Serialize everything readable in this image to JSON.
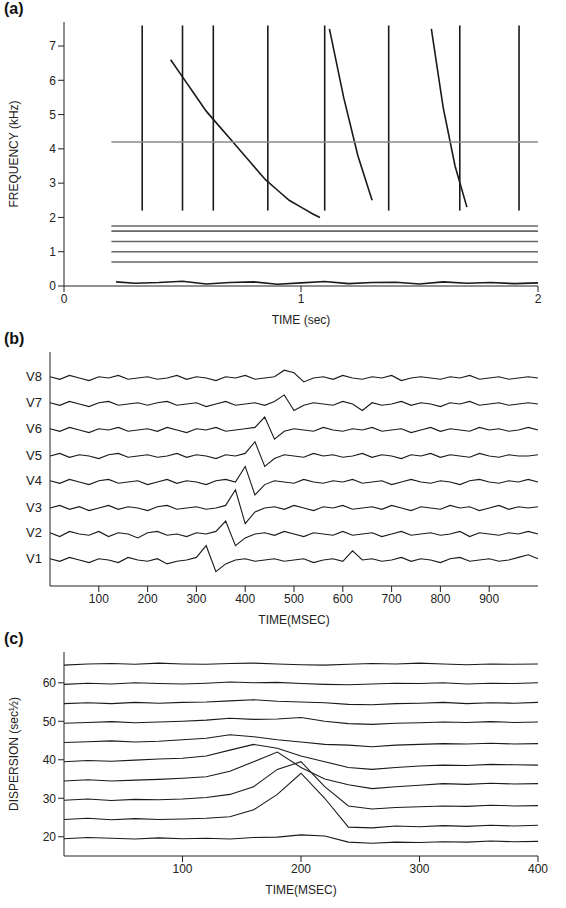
{
  "chart_data": [
    {
      "type": "line",
      "title": "(a)",
      "x_label": "TIME (sec)",
      "y_label": "FREQUENCY (kHz)",
      "color": "#1a1a1a",
      "xlim": [
        0,
        2
      ],
      "xticks": [
        0,
        1,
        2
      ],
      "ylim": [
        0,
        7.7
      ],
      "yticks": [
        0,
        1,
        2,
        3,
        4,
        5,
        6,
        7
      ],
      "series": [
        {
          "x": [
            0.45,
            0.5,
            0.55,
            0.6,
            0.65,
            0.7,
            0.75,
            0.8,
            0.85,
            0.9,
            0.95,
            1.0,
            1.05,
            1.08
          ],
          "values": [
            6.6,
            6.1,
            5.6,
            5.1,
            4.7,
            4.3,
            3.9,
            3.5,
            3.1,
            2.8,
            2.5,
            2.3,
            2.1,
            2.0
          ]
        },
        {
          "x": [
            1.12,
            1.18,
            1.24,
            1.3
          ],
          "values": [
            7.5,
            5.5,
            3.8,
            2.5
          ]
        },
        {
          "x": [
            1.55,
            1.6,
            1.65,
            1.7
          ],
          "values": [
            7.5,
            5.2,
            3.5,
            2.3
          ]
        },
        {
          "x": [
            0.33,
            0.33
          ],
          "values": [
            2.2,
            7.6
          ]
        },
        {
          "x": [
            0.5,
            0.5
          ],
          "values": [
            2.2,
            7.6
          ]
        },
        {
          "x": [
            0.63,
            0.63
          ],
          "values": [
            2.2,
            7.6
          ]
        },
        {
          "x": [
            0.86,
            0.86
          ],
          "values": [
            2.2,
            7.6
          ]
        },
        {
          "x": [
            1.1,
            1.1
          ],
          "values": [
            2.2,
            7.6
          ]
        },
        {
          "x": [
            1.37,
            1.37
          ],
          "values": [
            2.2,
            7.6
          ]
        },
        {
          "x": [
            1.67,
            1.67
          ],
          "values": [
            2.2,
            7.6
          ]
        },
        {
          "x": [
            1.92,
            1.92
          ],
          "values": [
            2.2,
            7.6
          ]
        },
        {
          "x": [
            0.2,
            2.0
          ],
          "values": [
            0.7,
            0.7
          ],
          "color": "#666666"
        },
        {
          "x": [
            0.2,
            2.0
          ],
          "values": [
            1.0,
            1.0
          ],
          "color": "#666666"
        },
        {
          "x": [
            0.2,
            2.0
          ],
          "values": [
            1.3,
            1.3
          ],
          "color": "#666666"
        },
        {
          "x": [
            0.2,
            2.0
          ],
          "values": [
            1.6,
            1.6
          ],
          "color": "#666666"
        },
        {
          "x": [
            0.2,
            2.0
          ],
          "values": [
            1.75,
            1.75
          ],
          "color": "#666666"
        },
        {
          "x": [
            0.2,
            2.0
          ],
          "values": [
            4.2,
            4.2
          ],
          "color": "#888888"
        },
        {
          "x": [
            0.22,
            0.3,
            0.4,
            0.5,
            0.6,
            0.7,
            0.8,
            0.9,
            1.0,
            1.1,
            1.2,
            1.3,
            1.4,
            1.5,
            1.6,
            1.7,
            1.8,
            1.9,
            2.0
          ],
          "values": [
            0.12,
            0.08,
            0.1,
            0.14,
            0.06,
            0.1,
            0.12,
            0.05,
            0.09,
            0.13,
            0.07,
            0.1,
            0.11,
            0.06,
            0.12,
            0.08,
            0.1,
            0.07,
            0.09
          ]
        }
      ]
    },
    {
      "type": "line",
      "title": "(b)",
      "x_label": "TIME(MSEC)",
      "color": "#1a1a1a",
      "tick_labels": "x",
      "xlim": [
        0,
        1000
      ],
      "xticks": [
        100,
        200,
        300,
        400,
        500,
        600,
        700,
        800,
        900
      ],
      "ylim": [
        0,
        9
      ],
      "x": [
        0,
        20,
        40,
        60,
        80,
        100,
        120,
        140,
        160,
        180,
        200,
        220,
        240,
        260,
        280,
        300,
        320,
        340,
        360,
        380,
        400,
        420,
        440,
        460,
        480,
        500,
        520,
        540,
        560,
        580,
        600,
        620,
        640,
        660,
        680,
        700,
        720,
        740,
        760,
        780,
        800,
        820,
        840,
        860,
        880,
        900,
        920,
        940,
        960,
        980,
        1000
      ],
      "series": [
        {
          "name": "V1",
          "values": [
            1.05,
            0.95,
            1.1,
            1.0,
            0.9,
            1.05,
            1.0,
            0.9,
            1.1,
            1.0,
            0.95,
            1.05,
            0.85,
            0.95,
            1.0,
            1.1,
            1.55,
            0.55,
            0.85,
            1.0,
            1.05,
            0.95,
            1.0,
            1.05,
            0.95,
            1.0,
            1.05,
            0.9,
            1.0,
            1.05,
            0.95,
            1.35,
            1.0,
            1.05,
            0.95,
            1.0,
            1.1,
            0.95,
            1.05,
            1.0,
            0.9,
            1.05,
            1.1,
            0.95,
            1.0,
            1.05,
            0.95,
            1.0,
            1.1,
            1.2,
            1.05
          ]
        },
        {
          "name": "V2",
          "values": [
            2.05,
            1.9,
            2.1,
            2.0,
            1.95,
            2.1,
            1.9,
            2.05,
            2.0,
            1.85,
            2.05,
            2.1,
            1.95,
            2.0,
            1.9,
            2.05,
            2.0,
            2.1,
            2.5,
            1.55,
            1.85,
            2.0,
            2.05,
            1.95,
            2.1,
            2.0,
            1.9,
            2.05,
            2.0,
            1.95,
            2.1,
            1.95,
            2.0,
            2.05,
            1.9,
            2.0,
            2.1,
            1.95,
            2.0,
            2.05,
            1.95,
            2.0,
            2.1,
            1.9,
            2.05,
            2.0,
            1.95,
            2.05,
            2.0,
            2.1,
            2.0
          ]
        },
        {
          "name": "V3",
          "values": [
            3.0,
            3.1,
            2.95,
            3.05,
            2.9,
            3.0,
            3.1,
            2.95,
            3.05,
            3.0,
            2.9,
            3.05,
            3.1,
            2.95,
            3.0,
            3.05,
            2.95,
            3.0,
            3.1,
            3.7,
            2.4,
            2.85,
            3.0,
            3.05,
            2.95,
            3.1,
            3.0,
            2.9,
            3.05,
            3.0,
            3.1,
            2.95,
            3.0,
            3.05,
            2.95,
            3.1,
            3.0,
            2.9,
            3.05,
            3.0,
            2.95,
            3.1,
            3.0,
            3.05,
            2.9,
            3.0,
            3.1,
            2.95,
            3.05,
            3.0,
            3.05
          ]
        },
        {
          "name": "V4",
          "values": [
            4.05,
            3.95,
            4.1,
            4.0,
            3.9,
            4.05,
            4.1,
            3.95,
            4.0,
            4.05,
            3.9,
            4.0,
            4.1,
            3.95,
            4.05,
            4.0,
            3.9,
            4.05,
            4.1,
            4.0,
            4.6,
            3.5,
            3.9,
            4.05,
            4.0,
            3.95,
            4.1,
            4.0,
            3.95,
            4.05,
            4.0,
            4.1,
            3.95,
            4.0,
            4.05,
            3.9,
            4.0,
            4.1,
            4.0,
            3.95,
            4.05,
            4.0,
            3.9,
            4.05,
            4.1,
            4.0,
            3.95,
            4.05,
            4.0,
            4.1,
            4.0
          ]
        },
        {
          "name": "V5",
          "values": [
            5.0,
            5.1,
            4.95,
            5.05,
            5.0,
            4.9,
            5.05,
            5.1,
            4.95,
            5.0,
            5.05,
            4.95,
            5.0,
            5.1,
            4.95,
            5.05,
            5.0,
            4.9,
            5.05,
            5.0,
            5.1,
            5.55,
            4.6,
            4.9,
            5.05,
            5.0,
            4.95,
            5.1,
            5.0,
            5.05,
            4.95,
            5.0,
            5.1,
            4.95,
            5.05,
            5.0,
            4.9,
            5.05,
            5.0,
            5.1,
            4.95,
            5.05,
            5.0,
            4.95,
            5.1,
            5.0,
            4.95,
            5.05,
            5.0,
            5.0,
            5.05
          ]
        },
        {
          "name": "V6",
          "values": [
            6.05,
            5.95,
            6.1,
            6.0,
            5.9,
            6.05,
            6.0,
            6.1,
            5.95,
            6.0,
            6.05,
            5.95,
            6.1,
            6.0,
            5.9,
            6.05,
            6.0,
            6.1,
            5.95,
            6.0,
            6.05,
            6.1,
            6.5,
            5.65,
            5.95,
            6.05,
            6.0,
            5.95,
            6.1,
            6.0,
            5.95,
            6.05,
            6.0,
            6.1,
            5.95,
            6.0,
            6.05,
            5.9,
            6.0,
            6.1,
            5.95,
            6.05,
            6.0,
            5.95,
            6.1,
            6.0,
            6.05,
            5.95,
            6.0,
            6.1,
            6.0
          ]
        },
        {
          "name": "V7",
          "values": [
            7.05,
            6.95,
            7.1,
            7.0,
            6.9,
            7.05,
            7.1,
            6.95,
            7.0,
            7.05,
            6.95,
            7.05,
            7.1,
            6.95,
            7.0,
            7.05,
            6.9,
            7.0,
            7.1,
            6.95,
            7.0,
            7.05,
            6.95,
            7.1,
            7.35,
            6.75,
            6.95,
            7.05,
            7.0,
            6.95,
            7.1,
            7.0,
            6.75,
            7.05,
            6.95,
            7.0,
            7.1,
            6.95,
            7.05,
            7.0,
            6.9,
            7.05,
            7.0,
            7.1,
            6.95,
            7.0,
            7.05,
            6.95,
            7.0,
            7.05,
            7.0
          ]
        },
        {
          "name": "V8",
          "values": [
            8.05,
            7.95,
            8.1,
            8.0,
            7.9,
            8.05,
            8.0,
            8.1,
            7.95,
            8.0,
            8.05,
            7.95,
            8.0,
            8.1,
            7.95,
            8.05,
            8.0,
            7.9,
            8.05,
            8.0,
            8.1,
            7.95,
            8.0,
            8.05,
            8.3,
            8.2,
            7.85,
            8.0,
            8.05,
            7.95,
            8.1,
            8.0,
            7.95,
            8.05,
            8.0,
            8.1,
            7.9,
            8.0,
            8.05,
            8.0,
            7.95,
            8.05,
            8.0,
            8.1,
            7.95,
            8.0,
            8.05,
            7.95,
            8.0,
            8.05,
            8.0
          ]
        }
      ]
    },
    {
      "type": "line",
      "title": "(c)",
      "x_label": "TIME(MSEC)",
      "y_label": "DISPERSION (sec½)",
      "color": "#1a1a1a",
      "xlim": [
        0,
        400
      ],
      "xticks": [
        100,
        200,
        300,
        400
      ],
      "ylim": [
        15,
        68
      ],
      "yticks": [
        20,
        30,
        40,
        50,
        60
      ],
      "x": [
        0,
        20,
        40,
        60,
        80,
        100,
        120,
        140,
        160,
        180,
        200,
        220,
        240,
        260,
        280,
        300,
        320,
        340,
        360,
        380,
        400
      ],
      "series": [
        {
          "values": [
            19.5,
            19.8,
            19.6,
            19.4,
            19.7,
            19.5,
            19.6,
            19.4,
            19.8,
            19.9,
            20.5,
            20.2,
            18.6,
            18.3,
            18.6,
            18.5,
            18.7,
            18.6,
            18.9,
            18.7,
            18.8
          ]
        },
        {
          "values": [
            24.5,
            24.8,
            24.4,
            24.7,
            24.5,
            24.6,
            24.8,
            25.2,
            27,
            31,
            36.5,
            30,
            22.5,
            22.3,
            22.8,
            22.6,
            22.9,
            22.7,
            23,
            22.8,
            23
          ]
        },
        {
          "values": [
            29.5,
            29.8,
            29.4,
            29.7,
            29.6,
            29.8,
            30.2,
            31,
            33,
            37.5,
            39.5,
            33,
            28,
            27.2,
            27.6,
            27.8,
            28,
            27.9,
            28.2,
            28,
            28.1
          ]
        },
        {
          "values": [
            34.5,
            34.8,
            34.5,
            34.7,
            34.9,
            35.2,
            35.6,
            37,
            39.5,
            42,
            38,
            35,
            33.5,
            32.5,
            33,
            33.4,
            33.8,
            33.6,
            33.9,
            33.7,
            33.8
          ]
        },
        {
          "values": [
            39.5,
            39.8,
            39.6,
            39.9,
            40.2,
            40.4,
            41,
            42.5,
            44,
            43,
            41,
            39.5,
            38,
            37.5,
            38,
            38.4,
            38.6,
            38.5,
            38.8,
            38.7,
            38.6
          ]
        },
        {
          "values": [
            44.5,
            44.7,
            44.9,
            44.6,
            44.8,
            45.2,
            45.6,
            46.5,
            46,
            45.2,
            44.6,
            44,
            43.8,
            43.4,
            43.8,
            44,
            44.2,
            44.1,
            44.3,
            44.1,
            44.2
          ]
        },
        {
          "values": [
            49.5,
            49.7,
            49.9,
            49.6,
            49.8,
            50,
            50.3,
            50.8,
            50.5,
            50.6,
            51,
            50,
            49.4,
            49.2,
            49.5,
            49.6,
            49.8,
            49.7,
            49.9,
            49.7,
            49.8
          ]
        },
        {
          "values": [
            54.6,
            54.8,
            54.6,
            54.9,
            54.7,
            54.9,
            55,
            55.3,
            55.6,
            55.2,
            55,
            54.8,
            54.4,
            54.3,
            54.6,
            54.7,
            54.9,
            54.6,
            54.8,
            54.7,
            54.9
          ]
        },
        {
          "values": [
            59.6,
            59.9,
            59.7,
            60,
            59.8,
            59.7,
            59.9,
            60.2,
            60,
            60.1,
            59.8,
            59.6,
            59.5,
            59.7,
            59.9,
            59.8,
            60,
            59.7,
            59.9,
            59.8,
            60
          ]
        },
        {
          "values": [
            64.6,
            64.9,
            65,
            64.8,
            65.1,
            64.9,
            64.8,
            65,
            65.1,
            64.9,
            64.7,
            64.6,
            64.8,
            65,
            64.9,
            65.1,
            64.9,
            64.7,
            64.9,
            64.8,
            64.9
          ]
        }
      ]
    }
  ]
}
